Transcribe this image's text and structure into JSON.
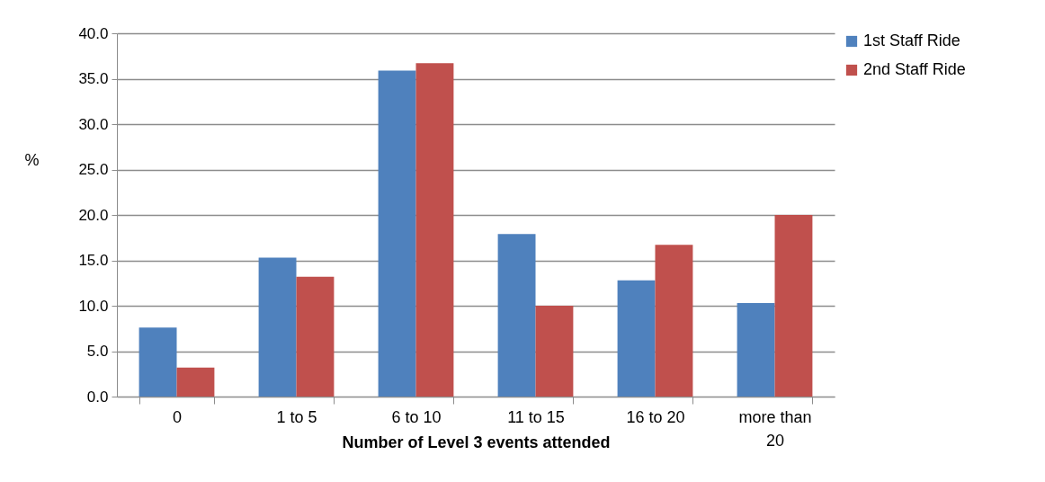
{
  "chart_data": {
    "type": "bar",
    "xlabel": "Number of Level 3 events attended",
    "ylabel": "%",
    "categories": [
      "0",
      "1 to 5",
      "6 to 10",
      "11 to 15",
      "16 to 20",
      "more than 20"
    ],
    "series": [
      {
        "name": "1st Staff Ride",
        "color": "#4f81bd",
        "values": [
          7.6,
          15.3,
          35.9,
          17.9,
          12.8,
          10.3
        ]
      },
      {
        "name": "2nd Staff Ride",
        "color": "#c0504d",
        "values": [
          3.2,
          13.2,
          36.7,
          10.0,
          16.7,
          20.0
        ]
      }
    ],
    "ylim": [
      0,
      40
    ],
    "yticks": [
      {
        "value": 0,
        "label": "0.0"
      },
      {
        "value": 5,
        "label": "5.0"
      },
      {
        "value": 10,
        "label": "10.0"
      },
      {
        "value": 15,
        "label": "15.0"
      },
      {
        "value": 20,
        "label": "20.0"
      },
      {
        "value": 25,
        "label": "25.0"
      },
      {
        "value": 30,
        "label": "30.0"
      },
      {
        "value": 35,
        "label": "35.0"
      },
      {
        "value": 40,
        "label": "40.0"
      }
    ],
    "grid": "y",
    "legend": "right"
  }
}
